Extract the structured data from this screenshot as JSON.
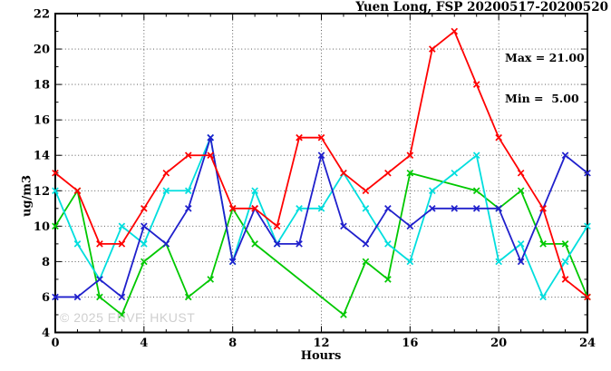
{
  "title": "Yuen Long, FSP 20200517-20200520",
  "annotation": {
    "max_label": "Max = 21.00",
    "min_label": "Min =  5.00"
  },
  "watermark": "© 2025 ENVF, HKUST",
  "chart_data": {
    "type": "line",
    "title": "Yuen Long, FSP 20200517-20200520",
    "xlabel": "Hours",
    "ylabel": "ug/m3",
    "xlim": [
      0,
      24
    ],
    "ylim": [
      4,
      22
    ],
    "x_ticks": [
      0,
      4,
      8,
      12,
      16,
      20,
      24
    ],
    "y_ticks": [
      4,
      6,
      8,
      10,
      12,
      14,
      16,
      18,
      20,
      22
    ],
    "grid": true,
    "legend_position": "none",
    "marker": "x",
    "x": [
      0,
      1,
      2,
      3,
      4,
      5,
      6,
      7,
      8,
      9,
      10,
      11,
      12,
      13,
      14,
      15,
      16,
      17,
      18,
      19,
      20,
      21,
      22,
      23,
      24
    ],
    "series": [
      {
        "name": "green",
        "color": "#00c800",
        "values": [
          10,
          12,
          6,
          5,
          8,
          9,
          6,
          7,
          11,
          9,
          null,
          null,
          null,
          5,
          8,
          7,
          13,
          null,
          null,
          12,
          11,
          12,
          9,
          9,
          6
        ]
      },
      {
        "name": "cyan",
        "color": "#00dede",
        "values": [
          12,
          9,
          7,
          10,
          9,
          12,
          12,
          15,
          8,
          12,
          9,
          11,
          11,
          13,
          11,
          9,
          8,
          12,
          13,
          14,
          8,
          9,
          6,
          8,
          10
        ]
      },
      {
        "name": "blue",
        "color": "#2020cc",
        "values": [
          6,
          6,
          7,
          6,
          10,
          9,
          11,
          15,
          8,
          11,
          9,
          9,
          14,
          10,
          9,
          11,
          10,
          11,
          11,
          11,
          11,
          8,
          11,
          14,
          13
        ]
      },
      {
        "name": "red",
        "color": "#ff0000",
        "values": [
          13,
          12,
          9,
          9,
          11,
          13,
          14,
          14,
          11,
          11,
          10,
          15,
          15,
          13,
          12,
          13,
          14,
          20,
          21,
          18,
          15,
          13,
          11,
          7,
          6
        ]
      }
    ],
    "stat_max": 21.0,
    "stat_min": 5.0
  }
}
